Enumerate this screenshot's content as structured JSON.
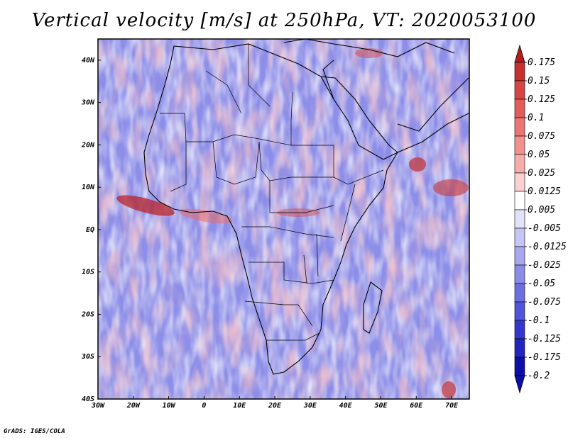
{
  "title": "Vertical velocity [m/s] at 250hPa, VT: 2020053100",
  "credit": "GrADS: IGES/COLA",
  "colors": {
    "frame": "#000000",
    "coast": "#000000",
    "background": "#ffffff"
  },
  "map": {
    "lon_range": [
      -30,
      75
    ],
    "lat_range": [
      -40,
      45
    ],
    "x_ticks": [
      "30W",
      "20W",
      "10W",
      "0",
      "10E",
      "20E",
      "30E",
      "40E",
      "50E",
      "60E",
      "70E"
    ],
    "y_ticks": [
      "40N",
      "30N",
      "20N",
      "10N",
      "EQ",
      "10S",
      "20S",
      "30S",
      "40S"
    ]
  },
  "colorbar": {
    "labels": [
      "0.175",
      "0.15",
      "0.125",
      "0.1",
      "0.075",
      "0.05",
      "0.025",
      "0.0125",
      "0.005",
      "-0.005",
      "-0.0125",
      "-0.025",
      "-0.05",
      "-0.075",
      "-0.1",
      "-0.125",
      "-0.175",
      "-0.2"
    ],
    "colors": [
      "#b51c20",
      "#c82f2f",
      "#d84444",
      "#e35b5b",
      "#ec7474",
      "#f39090",
      "#f8adad",
      "#fcd0d0",
      "#ffffff",
      "#e2e2fb",
      "#c5c5f6",
      "#a8a8f0",
      "#8b8bea",
      "#6e6ee3",
      "#5252dc",
      "#3535d0",
      "#2323c0",
      "#0d0da8"
    ]
  }
}
